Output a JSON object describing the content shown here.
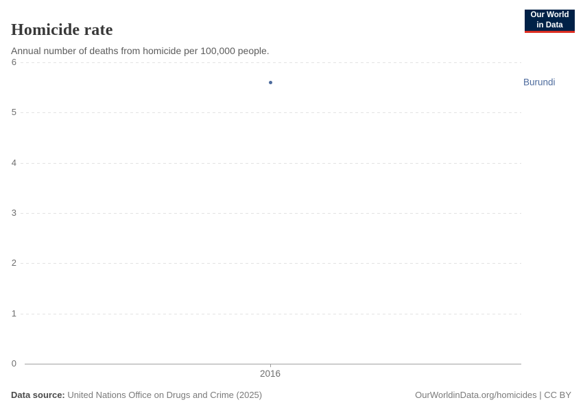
{
  "header": {
    "logo": {
      "line1": "Our World",
      "line2": "in Data"
    }
  },
  "chart_data": {
    "type": "scatter",
    "title": "Homicide rate",
    "subtitle": "Annual number of deaths from homicide per 100,000 people.",
    "series": [
      {
        "name": "Burundi",
        "color": "#4C6A9C",
        "points": [
          {
            "x": 2016,
            "y": 5.6
          }
        ]
      }
    ],
    "x_tick_labels": [
      "2016"
    ],
    "y_ticks": [
      0,
      1,
      2,
      3,
      4,
      5,
      6
    ],
    "ylim": [
      0,
      6
    ],
    "grid": "horizontal-dashed",
    "legend": "entity-label-right-of-plot"
  },
  "footer": {
    "datasource_label": "Data source:",
    "datasource_value": "United Nations Office on Drugs and Crime (2025)",
    "attribution": "OurWorldinData.org/homicides | CC BY"
  },
  "colors": {
    "accent_blue": "#4C6A9C",
    "logo_navy": "#002147",
    "logo_red": "#DC2E22",
    "gridline": "#E2E2E2",
    "axis": "#A0A0A0"
  }
}
